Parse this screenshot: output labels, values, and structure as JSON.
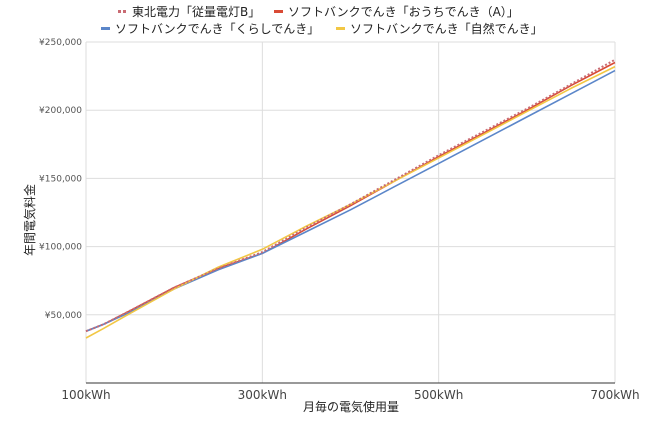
{
  "chart_data": {
    "type": "line",
    "xlabel": "月毎の電気使用量",
    "ylabel": "年間電気料金",
    "x_ticks": [
      "100kWh",
      "300kWh",
      "500kWh",
      "700kWh"
    ],
    "x_tick_values": [
      100,
      300,
      500,
      700
    ],
    "y_ticks": [
      "¥50,000",
      "¥100,000",
      "¥150,000",
      "¥200,000",
      "¥250,000"
    ],
    "y_tick_values": [
      50000,
      100000,
      150000,
      200000,
      250000
    ],
    "xlim": [
      100,
      700
    ],
    "ylim": [
      0,
      250000
    ],
    "grid": true,
    "legend_position": "top",
    "x": [
      100,
      120,
      150,
      200,
      250,
      300,
      350,
      400,
      450,
      500,
      550,
      600,
      650,
      700
    ],
    "series": [
      {
        "name": "東北電力「従量電灯B」",
        "color": "#c96b73",
        "dash": "dotted",
        "values": [
          38000,
          43000,
          53000,
          70000,
          84000,
          96000,
          114000,
          131000,
          149000,
          167000,
          184000,
          201000,
          219000,
          237000
        ]
      },
      {
        "name": "ソフトバンクでんき「おうちでんき（A）」",
        "color": "#d94a35",
        "dash": "solid",
        "values": [
          38000,
          43000,
          53000,
          70000,
          84000,
          95000,
          113000,
          130000,
          148000,
          166000,
          183000,
          200000,
          218000,
          235000
        ]
      },
      {
        "name": "ソフトバンクでんき「くらしでんき」",
        "color": "#5b86c9",
        "dash": "solid",
        "values": [
          38000,
          43000,
          52000,
          69000,
          83000,
          95000,
          111000,
          127000,
          144000,
          161000,
          178000,
          195000,
          212000,
          229000
        ]
      },
      {
        "name": "ソフトバンクでんき「自然でんき」",
        "color": "#f2c744",
        "dash": "solid",
        "values": [
          33000,
          40000,
          51000,
          69000,
          85000,
          98000,
          115000,
          131000,
          148000,
          165000,
          182000,
          199000,
          216000,
          232000
        ]
      }
    ]
  }
}
